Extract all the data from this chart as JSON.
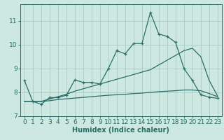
{
  "xlabel": "Humidex (Indice chaleur)",
  "bg_color": "#cce8e0",
  "grid_color": "#aaccC4",
  "line_color": "#2a6e68",
  "x_data": [
    0,
    1,
    2,
    3,
    4,
    5,
    6,
    7,
    8,
    9,
    10,
    11,
    12,
    13,
    14,
    15,
    16,
    17,
    18,
    19,
    20,
    21,
    22,
    23
  ],
  "y_main": [
    8.5,
    7.62,
    7.5,
    7.78,
    7.78,
    7.88,
    8.52,
    8.42,
    8.42,
    8.35,
    9.0,
    9.75,
    9.62,
    10.05,
    10.05,
    11.35,
    10.45,
    10.35,
    10.1,
    9.0,
    8.5,
    7.9,
    7.8,
    7.75
  ],
  "y_line2": [
    7.62,
    7.62,
    7.62,
    7.72,
    7.82,
    7.92,
    8.05,
    8.15,
    8.25,
    8.35,
    8.45,
    8.55,
    8.65,
    8.75,
    8.85,
    8.95,
    9.15,
    9.35,
    9.55,
    9.75,
    9.85,
    9.5,
    8.5,
    7.85
  ],
  "y_line3": [
    7.62,
    7.62,
    7.62,
    7.65,
    7.7,
    7.73,
    7.76,
    7.79,
    7.82,
    7.85,
    7.88,
    7.9,
    7.92,
    7.95,
    7.97,
    8.0,
    8.03,
    8.05,
    8.07,
    8.1,
    8.1,
    8.07,
    7.95,
    7.82
  ],
  "ylim": [
    7.0,
    11.7
  ],
  "yticks": [
    7,
    8,
    9,
    10,
    11
  ],
  "xlim": [
    -0.5,
    23.5
  ],
  "xticks": [
    0,
    1,
    2,
    3,
    4,
    5,
    6,
    7,
    8,
    9,
    10,
    11,
    12,
    13,
    14,
    15,
    16,
    17,
    18,
    19,
    20,
    21,
    22,
    23
  ],
  "xlabel_fontsize": 7,
  "tick_fontsize": 6.5
}
